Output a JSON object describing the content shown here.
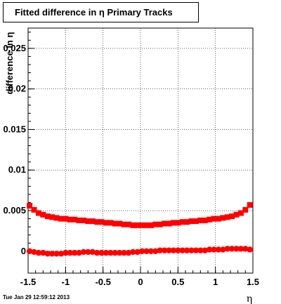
{
  "chart_data": {
    "type": "scatter",
    "title": "Fitted difference in η  Primary Tracks",
    "xlabel": "η",
    "ylabel": "difference in η",
    "xlim": [
      -1.5,
      1.5
    ],
    "ylim": [
      -0.0027,
      0.0275
    ],
    "xticks": [
      "-1.5",
      "-1",
      "-0.5",
      "0",
      "0.5",
      "1",
      "1.5"
    ],
    "xtick_values": [
      -1.5,
      -1,
      -0.5,
      0,
      0.5,
      1,
      1.5
    ],
    "yticks": [
      "0",
      "0.005",
      "0.01",
      "0.015",
      "0.02",
      "0.025"
    ],
    "ytick_values": [
      0,
      0.005,
      0.01,
      0.015,
      0.02,
      0.025
    ],
    "grid": true,
    "marker_color": "#ff0000",
    "series": [
      {
        "marker": "square",
        "points": [
          [
            -1.48,
            0.0056
          ],
          [
            -1.42,
            0.0051
          ],
          [
            -1.36,
            0.0047
          ],
          [
            -1.3,
            0.0045
          ],
          [
            -1.24,
            0.0043
          ],
          [
            -1.18,
            0.0042
          ],
          [
            -1.12,
            0.0041
          ],
          [
            -1.06,
            0.004
          ],
          [
            -1.0,
            0.004
          ],
          [
            -0.94,
            0.0039
          ],
          [
            -0.88,
            0.0039
          ],
          [
            -0.82,
            0.0038
          ],
          [
            -0.76,
            0.0038
          ],
          [
            -0.7,
            0.0037
          ],
          [
            -0.64,
            0.0037
          ],
          [
            -0.58,
            0.0036
          ],
          [
            -0.52,
            0.0036
          ],
          [
            -0.46,
            0.0035
          ],
          [
            -0.4,
            0.0035
          ],
          [
            -0.34,
            0.0034
          ],
          [
            -0.28,
            0.0034
          ],
          [
            -0.22,
            0.0033
          ],
          [
            -0.16,
            0.0033
          ],
          [
            -0.1,
            0.0032
          ],
          [
            -0.04,
            0.0032
          ],
          [
            0.02,
            0.0032
          ],
          [
            0.08,
            0.0032
          ],
          [
            0.14,
            0.0032
          ],
          [
            0.2,
            0.0033
          ],
          [
            0.26,
            0.0033
          ],
          [
            0.32,
            0.0034
          ],
          [
            0.38,
            0.0034
          ],
          [
            0.44,
            0.0035
          ],
          [
            0.5,
            0.0035
          ],
          [
            0.56,
            0.0036
          ],
          [
            0.62,
            0.0036
          ],
          [
            0.68,
            0.0037
          ],
          [
            0.74,
            0.0037
          ],
          [
            0.8,
            0.0038
          ],
          [
            0.86,
            0.0038
          ],
          [
            0.92,
            0.0039
          ],
          [
            0.98,
            0.004
          ],
          [
            1.04,
            0.004
          ],
          [
            1.1,
            0.0041
          ],
          [
            1.16,
            0.0042
          ],
          [
            1.22,
            0.0043
          ],
          [
            1.28,
            0.0045
          ],
          [
            1.34,
            0.0047
          ],
          [
            1.4,
            0.0051
          ],
          [
            1.46,
            0.0057
          ]
        ]
      },
      {
        "marker": "circle",
        "points": [
          [
            -1.48,
            0.0
          ],
          [
            -1.42,
            -0.0001
          ],
          [
            -1.36,
            -0.0002
          ],
          [
            -1.3,
            -0.0002
          ],
          [
            -1.24,
            -0.0003
          ],
          [
            -1.18,
            -0.0003
          ],
          [
            -1.12,
            -0.0003
          ],
          [
            -1.06,
            -0.0003
          ],
          [
            -1.0,
            -0.0002
          ],
          [
            -0.94,
            -0.0002
          ],
          [
            -0.88,
            -0.0002
          ],
          [
            -0.82,
            -0.0002
          ],
          [
            -0.76,
            -0.0001
          ],
          [
            -0.7,
            -0.0001
          ],
          [
            -0.64,
            -0.0001
          ],
          [
            -0.58,
            -0.0002
          ],
          [
            -0.52,
            -0.0002
          ],
          [
            -0.46,
            -0.0002
          ],
          [
            -0.4,
            -0.0002
          ],
          [
            -0.34,
            -0.0002
          ],
          [
            -0.28,
            -0.0002
          ],
          [
            -0.22,
            -0.0002
          ],
          [
            -0.16,
            -0.0002
          ],
          [
            -0.1,
            -0.0001
          ],
          [
            -0.04,
            -0.0001
          ],
          [
            0.02,
            0.0
          ],
          [
            0.08,
            0.0
          ],
          [
            0.14,
            0.0
          ],
          [
            0.2,
            0.0
          ],
          [
            0.26,
            0.0001
          ],
          [
            0.32,
            0.0001
          ],
          [
            0.38,
            0.0001
          ],
          [
            0.44,
            0.0001
          ],
          [
            0.5,
            0.0001
          ],
          [
            0.56,
            0.0001
          ],
          [
            0.62,
            0.0001
          ],
          [
            0.68,
            0.0001
          ],
          [
            0.74,
            0.0001
          ],
          [
            0.8,
            0.0001
          ],
          [
            0.86,
            0.0001
          ],
          [
            0.92,
            0.0002
          ],
          [
            0.98,
            0.0002
          ],
          [
            1.04,
            0.0002
          ],
          [
            1.1,
            0.0002
          ],
          [
            1.16,
            0.0003
          ],
          [
            1.22,
            0.0003
          ],
          [
            1.28,
            0.0003
          ],
          [
            1.34,
            0.0003
          ],
          [
            1.4,
            0.0003
          ],
          [
            1.46,
            0.0002
          ]
        ]
      }
    ]
  },
  "footer": {
    "date": "Tue Jan 29 12:59:12 2013"
  }
}
